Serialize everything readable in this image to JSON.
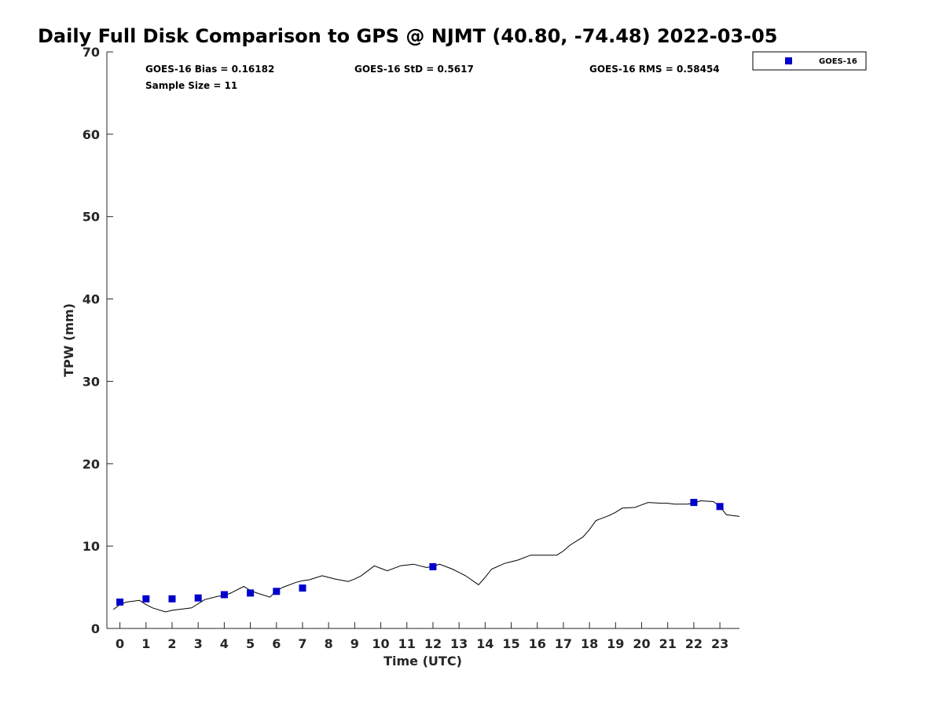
{
  "chart_data": {
    "type": "line",
    "title": "Daily Full Disk Comparison to GPS @ NJMT (40.80, -74.48) 2022-03-05",
    "xlabel": "Time (UTC)",
    "ylabel": "TPW (mm)",
    "xlim": [
      -0.5,
      23.75
    ],
    "ylim": [
      0,
      70
    ],
    "x_ticks": [
      0,
      1,
      2,
      3,
      4,
      5,
      6,
      7,
      8,
      9,
      10,
      11,
      12,
      13,
      14,
      15,
      16,
      17,
      18,
      19,
      20,
      21,
      22,
      23
    ],
    "x_tick_labels": [
      "0",
      "1",
      "2",
      "3",
      "4",
      "5",
      "6",
      "7",
      "8",
      "9",
      "10",
      "11",
      "12",
      "13",
      "14",
      "15",
      "16",
      "17",
      "18",
      "19",
      "20",
      "21",
      "22",
      "23"
    ],
    "y_ticks": [
      0,
      10,
      20,
      30,
      40,
      50,
      60,
      70
    ],
    "y_tick_labels": [
      "0",
      "10",
      "20",
      "30",
      "40",
      "50",
      "60",
      "70"
    ],
    "grid": false,
    "legend_position": "top-right-outside",
    "stats": {
      "bias": "GOES-16 Bias = 0.16182",
      "std": "GOES-16 StD = 0.5617",
      "rms": "GOES-16 RMS = 0.58454",
      "sample_size": "Sample Size = 11"
    },
    "colors": {
      "gps_line": "#000000",
      "goes_marker": "#0000cc"
    },
    "series": [
      {
        "type": "line",
        "x": [
          -0.25,
          0.0,
          0.25,
          0.75,
          1.0,
          1.25,
          1.75,
          2.0,
          2.25,
          2.75,
          3.0,
          3.25,
          3.75,
          4.0,
          4.25,
          4.75,
          5.0,
          5.25,
          5.75,
          6.0,
          6.25,
          6.75,
          7.0,
          7.25,
          7.75,
          8.0,
          8.25,
          8.75,
          9.0,
          9.25,
          9.75,
          10.0,
          10.25,
          10.75,
          11.0,
          11.25,
          11.75,
          12.0,
          12.25,
          12.75,
          13.0,
          13.25,
          13.75,
          14.0,
          14.25,
          14.75,
          15.0,
          15.25,
          15.75,
          16.0,
          16.25,
          16.75,
          17.0,
          17.25,
          17.75,
          18.0,
          18.25,
          18.75,
          19.0,
          19.25,
          19.75,
          20.0,
          20.25,
          20.75,
          21.0,
          21.25,
          21.75,
          22.0,
          22.25,
          22.75,
          23.0,
          23.25,
          23.75
        ],
        "y": [
          2.3,
          2.9,
          3.2,
          3.4,
          2.9,
          2.5,
          2.0,
          2.2,
          2.3,
          2.5,
          3.0,
          3.5,
          3.9,
          4.0,
          4.3,
          5.1,
          4.6,
          4.3,
          3.8,
          4.6,
          5.0,
          5.6,
          5.8,
          5.9,
          6.4,
          6.2,
          6.0,
          5.7,
          6.0,
          6.4,
          7.6,
          7.3,
          7.0,
          7.6,
          7.7,
          7.8,
          7.4,
          7.5,
          7.8,
          7.2,
          6.8,
          6.4,
          5.3,
          6.2,
          7.2,
          7.9,
          8.1,
          8.3,
          8.9,
          8.9,
          8.9,
          8.9,
          9.4,
          10.1,
          11.1,
          12.0,
          13.1,
          13.7,
          14.1,
          14.6,
          14.7,
          15.0,
          15.3,
          15.2,
          15.2,
          15.1,
          15.1,
          15.2,
          15.5,
          15.4,
          14.8,
          13.8,
          13.6
        ]
      },
      {
        "name": "GOES-16",
        "type": "scatter",
        "x": [
          0,
          1,
          2,
          3,
          4,
          5,
          6,
          7,
          12,
          22,
          23
        ],
        "y": [
          3.2,
          3.6,
          3.6,
          3.7,
          4.1,
          4.3,
          4.5,
          4.9,
          7.5,
          15.3,
          14.8
        ]
      }
    ]
  }
}
